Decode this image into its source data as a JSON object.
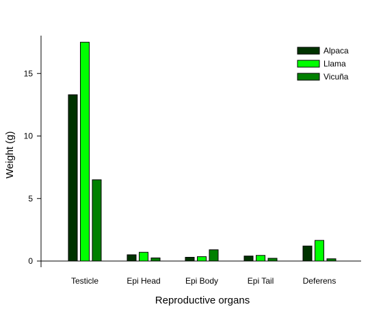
{
  "chart_data": {
    "type": "bar",
    "title": "",
    "xlabel": "Reproductive organs",
    "ylabel": "Weight (g)",
    "categories": [
      "Testicle",
      "Epi Head",
      "Epi Body",
      "Epi Tail",
      "Deferens"
    ],
    "series": [
      {
        "name": "Alpaca",
        "color": "#003300",
        "values": [
          13.3,
          0.5,
          0.3,
          0.4,
          1.2
        ]
      },
      {
        "name": "Llama",
        "color": "#00ff00",
        "values": [
          17.5,
          0.7,
          0.35,
          0.45,
          1.65
        ]
      },
      {
        "name": "Vicuña",
        "color": "#008000",
        "values": [
          6.5,
          0.25,
          0.9,
          0.22,
          0.18
        ]
      }
    ],
    "ylim": [
      0,
      18
    ],
    "yticks": [
      0,
      5,
      10,
      15
    ],
    "grid": false,
    "legend_position": "top-right"
  }
}
